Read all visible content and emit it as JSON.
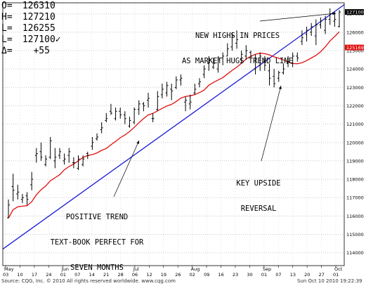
{
  "quote": {
    "open_label": "O=",
    "open": "126310",
    "high_label": "H=",
    "high": "127210",
    "low_label": "L=",
    "low": "126255",
    "last_label": "L=",
    "last": "127100✓",
    "change_label": "Δ=",
    "change": "+55"
  },
  "annotations": {
    "new_highs": [
      "NEW HIGHS IN PRICES",
      "AS MARKET HUGS TREND LINE"
    ],
    "positive_trend": [
      "POSITIVE TREND",
      "TEXT-BOOK PERFECT FOR",
      "SEVEN MONTHS"
    ],
    "key_upside": [
      "KEY UPSIDE",
      "REVERSAL"
    ]
  },
  "footer": {
    "source": "Source: CQG, Inc. © 2010 All rights reserved worldwide. www.cqg.com",
    "timestamp": "Sun Oct 10 2010 19:22:39"
  },
  "colors": {
    "bars": "#000000",
    "trend_line": "#1a1ad8",
    "moving_average": "#e01010",
    "last_tag": "#000000",
    "ma_tag": "#e01010"
  },
  "chart_data": {
    "type": "ohlc",
    "y_ticks": [
      114000,
      115000,
      116000,
      117000,
      118000,
      119000,
      120000,
      121000,
      122000,
      123000,
      124000,
      125000,
      126000,
      127000
    ],
    "y_tick_labels": [
      "114000",
      "115000",
      "116000",
      "117000",
      "118000",
      "119000",
      "120000",
      "121000",
      "122000",
      "123000",
      "124000",
      "125000",
      "126000",
      "127000"
    ],
    "ylim": [
      113300,
      127600
    ],
    "price_tags": {
      "last": "127100",
      "moving_average": "125169"
    },
    "month_labels": [
      "May",
      "Jun",
      "Jul",
      "Aug",
      "Sep",
      "Oct"
    ],
    "day_labels": [
      "03",
      "10",
      "17",
      "24",
      "01",
      "07",
      "14",
      "21",
      "28",
      "06",
      "12",
      "19",
      "26",
      "02",
      "09",
      "16",
      "23",
      "30",
      "01",
      "07",
      "13",
      "20",
      "27",
      "01"
    ],
    "bars": [
      [
        115900,
        116900,
        115900,
        116600
      ],
      [
        117600,
        118300,
        116800,
        117400
      ],
      [
        117200,
        117700,
        116900,
        117300
      ],
      [
        116900,
        117200,
        116700,
        117000
      ],
      [
        117100,
        117300,
        116600,
        116900
      ],
      [
        117700,
        118400,
        117400,
        118000
      ],
      [
        119300,
        119700,
        118900,
        119400
      ],
      [
        119500,
        120000,
        119000,
        119200
      ],
      [
        118800,
        119300,
        118700,
        119100
      ],
      [
        119200,
        120300,
        119100,
        120100
      ],
      [
        119000,
        119700,
        118600,
        119200
      ],
      [
        119300,
        119700,
        119100,
        119500
      ],
      [
        119000,
        119400,
        118800,
        119100
      ],
      [
        119300,
        119700,
        118900,
        119500
      ],
      [
        118900,
        119200,
        118600,
        118900
      ],
      [
        118600,
        119300,
        118500,
        119100
      ],
      [
        118800,
        119300,
        118700,
        119100
      ],
      [
        119400,
        119500,
        119100,
        119300
      ],
      [
        119800,
        120300,
        119600,
        120000
      ],
      [
        120200,
        120500,
        120100,
        120300
      ],
      [
        120700,
        121100,
        120500,
        120800
      ],
      [
        121200,
        121600,
        121100,
        121300
      ],
      [
        121700,
        122100,
        121500,
        121600
      ],
      [
        121300,
        121900,
        121200,
        121700
      ],
      [
        121700,
        121900,
        121300,
        121500
      ],
      [
        121500,
        121700,
        121000,
        121300
      ],
      [
        120900,
        121400,
        120800,
        121200
      ],
      [
        121100,
        121900,
        121000,
        121800
      ],
      [
        121800,
        122300,
        121500,
        122100
      ],
      [
        122100,
        122200,
        121700,
        122000
      ],
      [
        122300,
        122700,
        121900,
        122400
      ],
      [
        121300,
        121600,
        121100,
        121300
      ],
      [
        121800,
        122800,
        121700,
        122500
      ],
      [
        122600,
        123200,
        122400,
        122900
      ],
      [
        122700,
        123300,
        122500,
        123100
      ],
      [
        122900,
        123200,
        122300,
        122800
      ],
      [
        123000,
        123600,
        122900,
        123400
      ],
      [
        123400,
        123700,
        123100,
        123500
      ],
      [
        122200,
        122500,
        121700,
        122300
      ],
      [
        122100,
        122600,
        121800,
        122200
      ],
      [
        122700,
        123200,
        122600,
        122900
      ],
      [
        123200,
        123500,
        123000,
        123300
      ],
      [
        123700,
        124200,
        123500,
        124000
      ],
      [
        124300,
        124700,
        123900,
        124500
      ],
      [
        124100,
        124600,
        124000,
        124300
      ],
      [
        124000,
        124700,
        123800,
        124500
      ],
      [
        124600,
        124900,
        124200,
        124700
      ],
      [
        124700,
        125400,
        124700,
        125100
      ],
      [
        125200,
        126000,
        125000,
        125800
      ],
      [
        125400,
        126100,
        125100,
        125600
      ],
      [
        124500,
        125000,
        124300,
        124800
      ],
      [
        124700,
        125300,
        124500,
        125000
      ],
      [
        124900,
        125000,
        124600,
        124700
      ],
      [
        124000,
        124800,
        123700,
        124600
      ],
      [
        124200,
        124900,
        123900,
        124700
      ],
      [
        124400,
        124700,
        123900,
        124200
      ],
      [
        123900,
        124300,
        123100,
        123500
      ],
      [
        123600,
        124000,
        123000,
        123200
      ],
      [
        123500,
        123900,
        123300,
        123800
      ],
      [
        123800,
        124300,
        123700,
        124000
      ],
      [
        124300,
        124700,
        124100,
        124400
      ],
      [
        124300,
        124900,
        124100,
        124700
      ],
      [
        124700,
        124900,
        124400,
        124600
      ],
      [
        125500,
        126100,
        125300,
        125700
      ],
      [
        125900,
        126300,
        125500,
        126100
      ],
      [
        126000,
        126500,
        125800,
        126300
      ],
      [
        125800,
        126700,
        125300,
        126400
      ],
      [
        126400,
        126800,
        126200,
        126600
      ],
      [
        126100,
        126900,
        125900,
        126700
      ],
      [
        126700,
        127300,
        126400,
        127000
      ],
      [
        126600,
        127100,
        126300,
        126700
      ],
      [
        126310,
        127210,
        126255,
        127100
      ]
    ]
  }
}
